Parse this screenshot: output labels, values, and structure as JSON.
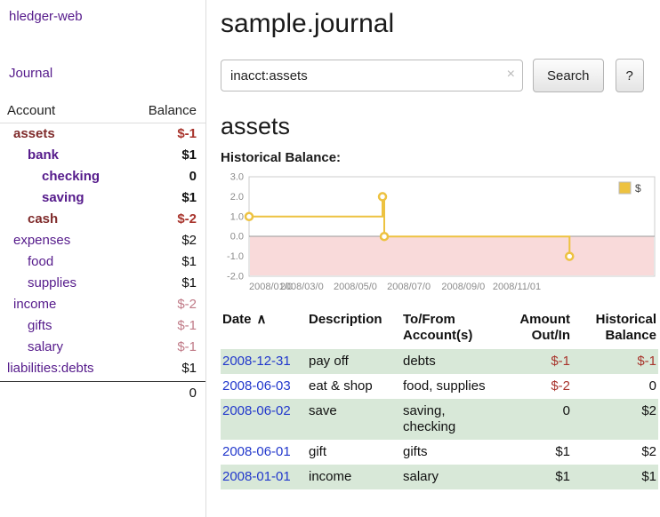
{
  "colors": {
    "link_purple": "#551a8b",
    "account_neg_name": "#7f2b2b",
    "neg": "#a8342c",
    "neg_light": "#c07a87",
    "date_blue": "#2238cc",
    "row_green": "#d8e8d8",
    "chart_line": "#edc240",
    "chart_fill": "#f9dada"
  },
  "sidebar": {
    "app_title": "hledger-web",
    "nav": {
      "journal": "Journal"
    },
    "table": {
      "header": {
        "account": "Account",
        "balance": "Balance"
      },
      "rows": [
        {
          "name": "assets",
          "balance": "$-1"
        },
        {
          "name": "bank",
          "balance": "$1"
        },
        {
          "name": "checking",
          "balance": "0"
        },
        {
          "name": "saving",
          "balance": "$1"
        },
        {
          "name": "cash",
          "balance": "$-2"
        },
        {
          "name": "expenses",
          "balance": "$2"
        },
        {
          "name": "food",
          "balance": "$1"
        },
        {
          "name": "supplies",
          "balance": "$1"
        },
        {
          "name": "income",
          "balance": "$-2"
        },
        {
          "name": "gifts",
          "balance": "$-1"
        },
        {
          "name": "salary",
          "balance": "$-1"
        },
        {
          "name": "liabilities:debts",
          "balance": "$1"
        }
      ],
      "total": "0"
    }
  },
  "main": {
    "title": "sample.journal",
    "search": {
      "value": "inacct:assets",
      "clear": "×",
      "button": "Search",
      "help": "?"
    },
    "account_title": "assets",
    "chart_title": "Historical Balance:"
  },
  "chart_data": {
    "type": "line",
    "step": true,
    "title": "Historical Balance",
    "legend": "top-right",
    "x_start": "2008-01-01",
    "x_domain_days": [
      0,
      462
    ],
    "ylim": [
      -2,
      3
    ],
    "yticks": [
      3.0,
      2.0,
      1.0,
      0.0,
      -1.0,
      -2.0
    ],
    "ytick_labels": [
      "3.0",
      "2.0",
      "1.0",
      "0.0",
      "-1.0",
      "-2.0"
    ],
    "xtick_days": [
      0,
      60,
      121,
      182,
      244,
      305
    ],
    "xtick_labels": [
      "2008/01/0",
      "2008/03/0",
      "2008/05/0",
      "2008/07/0",
      "2008/09/0",
      "2008/11/01"
    ],
    "negative_region_shaded": true,
    "series": [
      {
        "name": "$",
        "points": [
          [
            "2008-01-01",
            1
          ],
          [
            "2008-06-01",
            2
          ],
          [
            "2008-06-03",
            0
          ],
          [
            "2008-12-31",
            -1
          ]
        ]
      }
    ]
  },
  "register": {
    "headers": {
      "date": "Date",
      "sort_icon": "∧",
      "description": "Description",
      "accounts": "To/From\nAccount(s)",
      "amount": "Amount\nOut/In",
      "balance": "Historical\nBalance"
    },
    "rows": [
      {
        "date": "2008-12-31",
        "description": "pay off",
        "accounts": "debts",
        "amount": "$-1",
        "balance": "$-1"
      },
      {
        "date": "2008-06-03",
        "description": "eat & shop",
        "accounts": "food, supplies",
        "amount": "$-2",
        "balance": "0"
      },
      {
        "date": "2008-06-02",
        "description": "save",
        "accounts": "saving,\nchecking",
        "amount": "0",
        "balance": "$2"
      },
      {
        "date": "2008-06-01",
        "description": "gift",
        "accounts": "gifts",
        "amount": "$1",
        "balance": "$2"
      },
      {
        "date": "2008-01-01",
        "description": "income",
        "accounts": "salary",
        "amount": "$1",
        "balance": "$1"
      }
    ]
  }
}
